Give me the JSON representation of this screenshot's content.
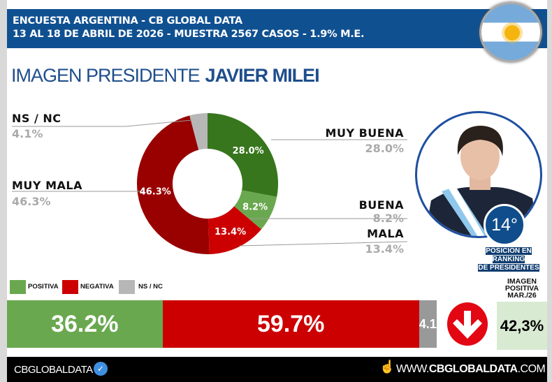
{
  "header": {
    "line1": "ENCUESTA ARGENTINA - CB GLOBAL DATA",
    "line2": "13 AL 18 DE ABRIL DE 2026 - MUESTRA 2567 CASOS - 1.9% M.E.",
    "flag_icon": "argentina-flag-icon"
  },
  "title": {
    "prefix": "IMAGEN PRESIDENTE",
    "name": "JAVIER MILEI"
  },
  "chart_data": {
    "type": "pie",
    "variant": "donut",
    "slices": [
      {
        "label": "MUY BUENA",
        "value": 28.0,
        "display": "28.0%",
        "color": "#38761d"
      },
      {
        "label": "BUENA",
        "value": 8.2,
        "display": "8.2%",
        "color": "#6aa84f"
      },
      {
        "label": "MALA",
        "value": 13.4,
        "display": "13.4%",
        "color": "#cc0000"
      },
      {
        "label": "MUY MALA",
        "value": 46.3,
        "display": "46.3%",
        "color": "#990000"
      },
      {
        "label": "NS / NC",
        "value": 4.1,
        "display": "4.1%",
        "color": "#b7b7b7"
      }
    ]
  },
  "ranking": {
    "position": "14°",
    "caption1": "POSICION EN RANKING",
    "caption2": "DE PRESIDENTES"
  },
  "legend": [
    {
      "label": "POSITIVA",
      "color": "#6aa84f"
    },
    {
      "label": "NEGATIVA",
      "color": "#cc0000"
    },
    {
      "label": "NS / NC",
      "color": "#b7b7b7"
    }
  ],
  "summary": [
    {
      "value": 36.2,
      "display": "36.2%",
      "color": "#6aa84f"
    },
    {
      "value": 59.7,
      "display": "59.7%",
      "color": "#cc0000"
    },
    {
      "value": 4.1,
      "display": "4.1%",
      "color": "#999999"
    }
  ],
  "trend": {
    "icon": "arrow-down-icon",
    "color": "#e30613"
  },
  "previous": {
    "h1": "IMAGEN",
    "h2": "POSITIVA",
    "h3": "MAR./26",
    "value": "42,3%"
  },
  "footer": {
    "brand": "CBGLOBALDATA",
    "site": "WWW.CBGLOBALDATA.COM",
    "site_bold": "CBGLOBALDATA"
  }
}
